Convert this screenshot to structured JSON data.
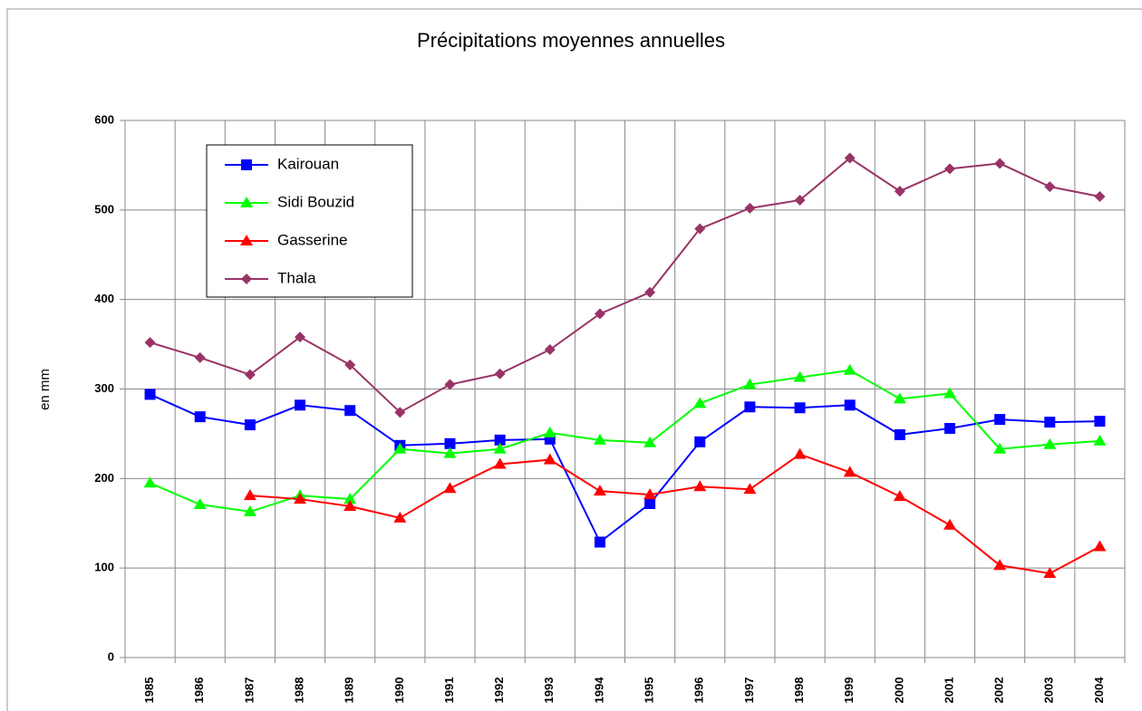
{
  "chart_data": {
    "type": "line",
    "title": "Précipitations moyennes annuelles",
    "y_label": "en mm",
    "categories": [
      "1985",
      "1986",
      "1987",
      "1988",
      "1989",
      "1990",
      "1991",
      "1992",
      "1993",
      "1994",
      "1995",
      "1996",
      "1997",
      "1998",
      "1999",
      "2000",
      "2001",
      "2002",
      "2003",
      "2004"
    ],
    "series": [
      {
        "name": "Kairouan",
        "color": "#0000ff",
        "marker": "square",
        "values": [
          294,
          269,
          260,
          282,
          276,
          237,
          239,
          243,
          244,
          129,
          172,
          241,
          280,
          279,
          282,
          249,
          256,
          266,
          263,
          264
        ]
      },
      {
        "name": "Sidi Bouzid",
        "color": "#00ff00",
        "marker": "triangle",
        "values": [
          195,
          171,
          163,
          181,
          177,
          233,
          228,
          233,
          251,
          243,
          240,
          284,
          305,
          313,
          321,
          289,
          295,
          233,
          238,
          242
        ]
      },
      {
        "name": "Gasserine",
        "color": "#ff0000",
        "marker": "triangle",
        "values": [
          null,
          null,
          181,
          177,
          169,
          156,
          189,
          216,
          221,
          186,
          182,
          191,
          188,
          227,
          207,
          180,
          148,
          103,
          94,
          124
        ]
      },
      {
        "name": "Thala",
        "color": "#993366",
        "marker": "diamond",
        "values": [
          352,
          335,
          316,
          358,
          327,
          274,
          305,
          317,
          344,
          384,
          408,
          479,
          502,
          511,
          558,
          521,
          546,
          552,
          526,
          515
        ]
      }
    ],
    "ylim": [
      0,
      600
    ],
    "yticks": [
      0,
      100,
      200,
      300,
      400,
      500,
      600
    ],
    "grid": true
  }
}
